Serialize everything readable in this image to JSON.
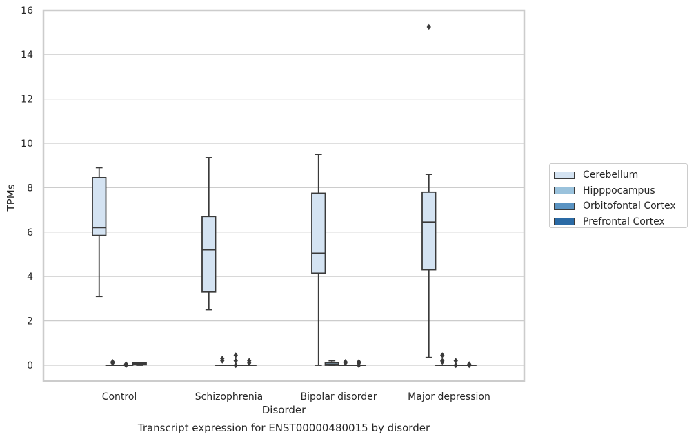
{
  "chart_data": {
    "type": "box",
    "title": "Transcript expression for ENST00000480015 by disorder",
    "xlabel": "Disorder",
    "ylabel": "TPMs",
    "ylim": [
      -0.7,
      16
    ],
    "yticks": [
      0,
      2,
      4,
      6,
      8,
      10,
      12,
      14,
      16
    ],
    "grid": true,
    "legend_position": "right",
    "categories": [
      "Control",
      "Schizophrenia",
      "Bipolar disorder",
      "Major depression"
    ],
    "series": [
      {
        "name": "Cerebellum",
        "color": "#d4e3f2",
        "boxes": [
          {
            "whislo": 3.1,
            "q1": 5.85,
            "med": 6.2,
            "q3": 8.45,
            "whishi": 8.9,
            "fliers": []
          },
          {
            "whislo": 2.5,
            "q1": 3.3,
            "med": 5.2,
            "q3": 6.7,
            "whishi": 9.35,
            "fliers": []
          },
          {
            "whislo": 0.0,
            "q1": 4.15,
            "med": 5.05,
            "q3": 7.75,
            "whishi": 9.5,
            "fliers": []
          },
          {
            "whislo": 0.35,
            "q1": 4.3,
            "med": 6.45,
            "q3": 7.8,
            "whishi": 8.6,
            "fliers": [
              15.25
            ]
          }
        ]
      },
      {
        "name": "Hipppocampus",
        "color": "#9ac2dc",
        "boxes": [
          {
            "whislo": 0.0,
            "q1": 0.0,
            "med": 0.0,
            "q3": 0.0,
            "whishi": 0.0,
            "fliers": [
              0.1,
              0.15
            ]
          },
          {
            "whislo": 0.0,
            "q1": 0.0,
            "med": 0.0,
            "q3": 0.0,
            "whishi": 0.0,
            "fliers": [
              0.2,
              0.3
            ]
          },
          {
            "whislo": 0.0,
            "q1": 0.0,
            "med": 0.05,
            "q3": 0.12,
            "whishi": 0.2,
            "fliers": []
          },
          {
            "whislo": 0.0,
            "q1": 0.0,
            "med": 0.0,
            "q3": 0.0,
            "whishi": 0.0,
            "fliers": [
              0.15,
              0.2,
              0.45
            ]
          }
        ]
      },
      {
        "name": "Orbitofontal Cortex",
        "color": "#5a93c2",
        "boxes": [
          {
            "whislo": 0.0,
            "q1": 0.0,
            "med": 0.0,
            "q3": 0.0,
            "whishi": 0.0,
            "fliers": [
              0.0,
              0.05
            ]
          },
          {
            "whislo": 0.0,
            "q1": 0.0,
            "med": 0.0,
            "q3": 0.0,
            "whishi": 0.0,
            "fliers": [
              0.0,
              0.2,
              0.45
            ]
          },
          {
            "whislo": 0.0,
            "q1": 0.0,
            "med": 0.0,
            "q3": 0.0,
            "whishi": 0.0,
            "fliers": [
              0.1,
              0.15
            ]
          },
          {
            "whislo": 0.0,
            "q1": 0.0,
            "med": 0.0,
            "q3": 0.0,
            "whishi": 0.0,
            "fliers": [
              0.0,
              0.2
            ]
          }
        ]
      },
      {
        "name": "Prefrontal Cortex",
        "color": "#2a6aa5",
        "boxes": [
          {
            "whislo": 0.0,
            "q1": 0.02,
            "med": 0.05,
            "q3": 0.1,
            "whishi": 0.12,
            "fliers": []
          },
          {
            "whislo": 0.0,
            "q1": 0.0,
            "med": 0.0,
            "q3": 0.0,
            "whishi": 0.0,
            "fliers": [
              0.1,
              0.2
            ]
          },
          {
            "whislo": 0.0,
            "q1": 0.0,
            "med": 0.0,
            "q3": 0.0,
            "whishi": 0.0,
            "fliers": [
              0.0,
              0.1,
              0.15
            ]
          },
          {
            "whislo": 0.0,
            "q1": 0.0,
            "med": 0.0,
            "q3": 0.0,
            "whishi": 0.0,
            "fliers": [
              0.0,
              0.05
            ]
          }
        ]
      }
    ]
  }
}
